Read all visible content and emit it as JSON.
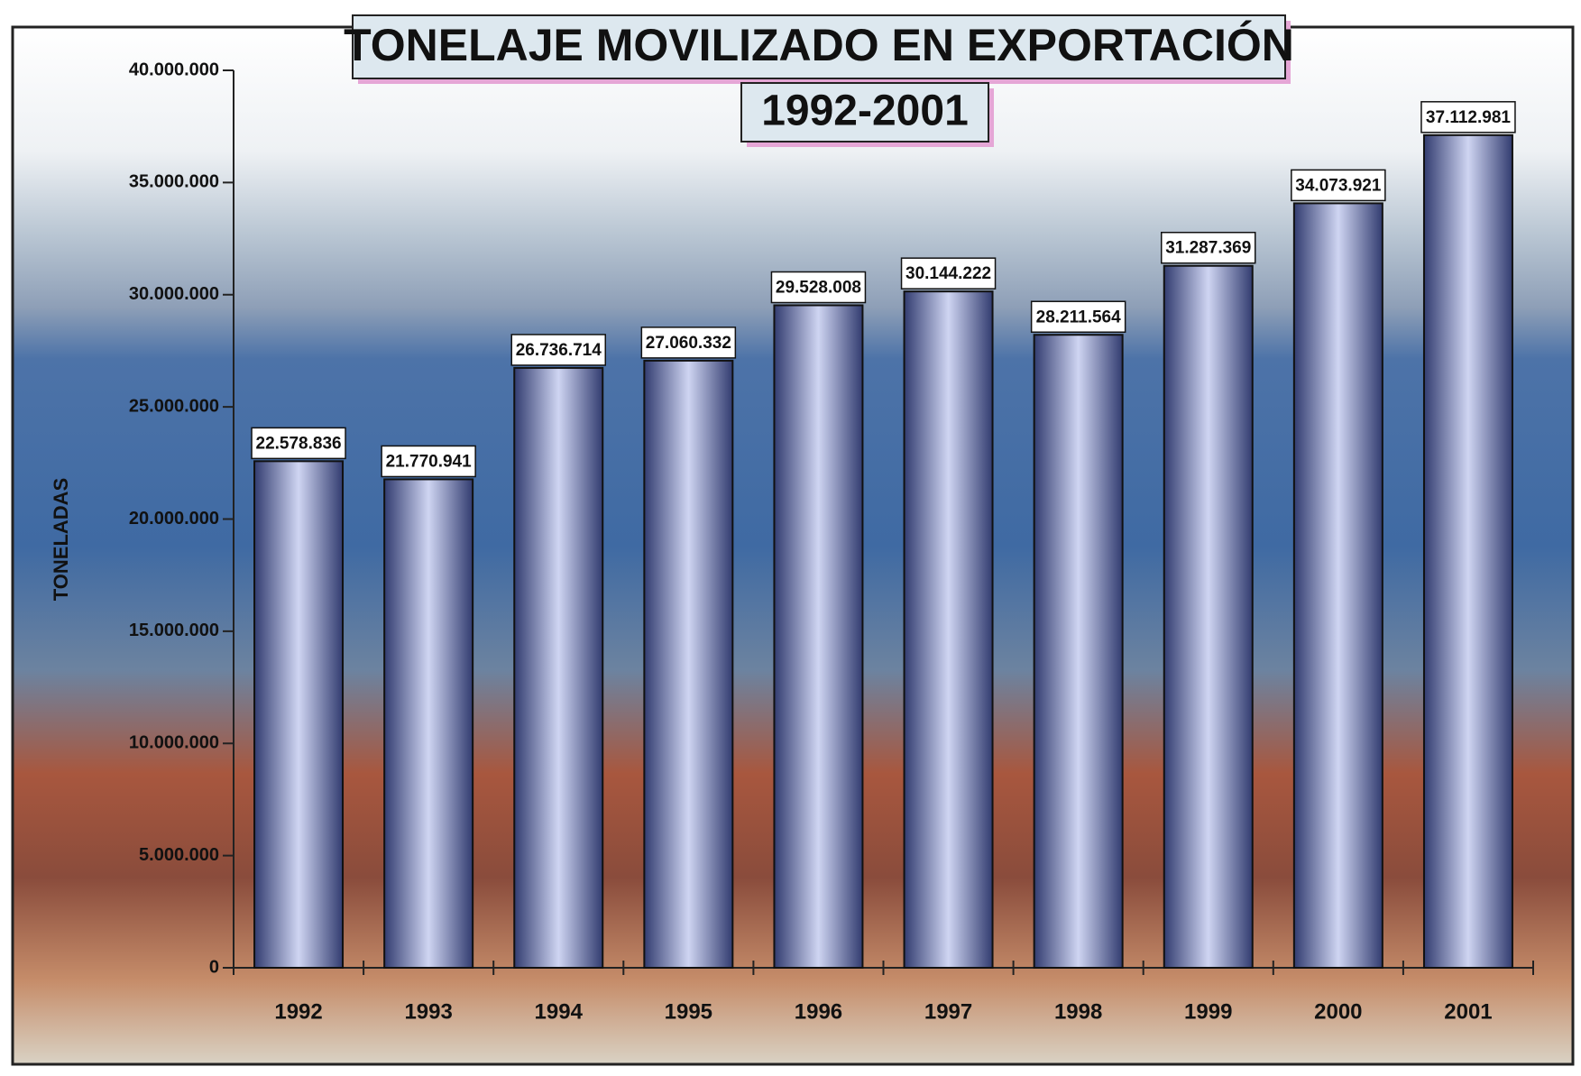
{
  "chart_data": {
    "type": "bar",
    "title": "TONELAJE MOVILIZADO EN EXPORTACIÓN",
    "subtitle": "1992-2001",
    "y_label": "TONELADAS",
    "categories": [
      "1992",
      "1993",
      "1994",
      "1995",
      "1996",
      "1997",
      "1998",
      "1999",
      "2000",
      "2001"
    ],
    "values": [
      22578836,
      21770941,
      26736714,
      27060332,
      29528008,
      30144222,
      28211564,
      31287369,
      34073921,
      37112981
    ],
    "value_labels": [
      "22.578.836",
      "21.770.941",
      "26.736.714",
      "27.060.332",
      "29.528.008",
      "30.144.222",
      "28.211.564",
      "31.287.369",
      "34.073.921",
      "37.112.981"
    ],
    "color": "#5a68a8",
    "ylim": [
      0,
      40000000
    ],
    "yticks": [
      0,
      {
        "value": 5000000,
        "label": "5.000.000"
      },
      {
        "value": 10000000,
        "label": "10.000.000"
      },
      {
        "value": 15000000,
        "label": "15.000.000"
      },
      {
        "value": 20000000,
        "label": "20.000.000"
      },
      {
        "value": 25000000,
        "label": "25.000.000"
      },
      {
        "value": 30000000,
        "label": "30.000.000"
      },
      {
        "value": 35000000,
        "label": "35.000.000"
      },
      {
        "value": 40000000,
        "label": "40.000.000"
      }
    ],
    "grid": false
  }
}
